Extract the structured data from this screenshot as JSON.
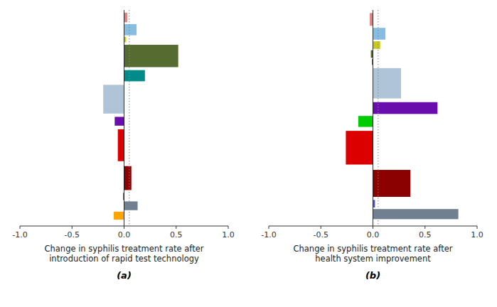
{
  "chart_data": [
    {
      "type": "bar",
      "orientation": "horizontal",
      "x_label": "Change in syphilis treatment rate after\nintroduction of rapid test technology",
      "annotation": "(a)",
      "categories": [
        null,
        null,
        null,
        null,
        null,
        null,
        null,
        null,
        null,
        null,
        null,
        null
      ],
      "values": [
        0.03,
        0.12,
        0.02,
        0.52,
        0.2,
        -0.2,
        -0.09,
        -0.06,
        0.07,
        -0.01,
        0.13,
        -0.1
      ],
      "heights": [
        0.6,
        0.7,
        0.35,
        1.4,
        0.7,
        1.8,
        0.55,
        2.0,
        1.5,
        0.45,
        0.55,
        0.5
      ],
      "colors": [
        "#e08080",
        "#87bde0",
        "#c8c820",
        "#556b2f",
        "#008b8b",
        "#b0c4d8",
        "#6a0dad",
        "#dd0000",
        "#8b0000",
        "#5555cc",
        "#708090",
        "#ffa500"
      ],
      "reference_line": 0.05,
      "xlim": [
        -1.0,
        1.0
      ],
      "xticks": [
        {
          "value": -1.0,
          "label": "-1.0"
        },
        -0.5,
        {
          "value": 0.0,
          "label": "0.0"
        },
        0.5,
        {
          "value": 1.0,
          "label": "1.0"
        }
      ],
      "tick_labels": "x",
      "grid": false
    },
    {
      "type": "bar",
      "orientation": "horizontal",
      "x_label": "Change in syphilis treatment rate after\nhealth system improvement",
      "annotation": "(b)",
      "categories": [
        null,
        null,
        null,
        null,
        null,
        null,
        null,
        null,
        null,
        null,
        null,
        null
      ],
      "values": [
        -0.03,
        0.12,
        0.07,
        -0.02,
        -0.01,
        0.27,
        0.62,
        -0.14,
        -0.26,
        0.36,
        0.02,
        0.82
      ],
      "heights": [
        0.75,
        0.7,
        0.45,
        0.45,
        0.35,
        1.8,
        0.7,
        0.65,
        2.0,
        1.6,
        0.45,
        0.6
      ],
      "colors": [
        "#e08080",
        "#87bde0",
        "#c8c820",
        "#556b2f",
        "#008b8b",
        "#b0c4d8",
        "#6a0dad",
        "#00cc00",
        "#dd0000",
        "#8b0000",
        "#5555cc",
        "#708090"
      ],
      "reference_line": 0.05,
      "xlim": [
        -1.0,
        1.0
      ],
      "xticks": [
        {
          "value": -1.0,
          "label": "-1.0"
        },
        -0.5,
        {
          "value": 0.0,
          "label": "0.0"
        },
        0.5,
        {
          "value": 1.0,
          "label": "1.0"
        }
      ],
      "tick_labels": "x",
      "grid": false
    }
  ]
}
